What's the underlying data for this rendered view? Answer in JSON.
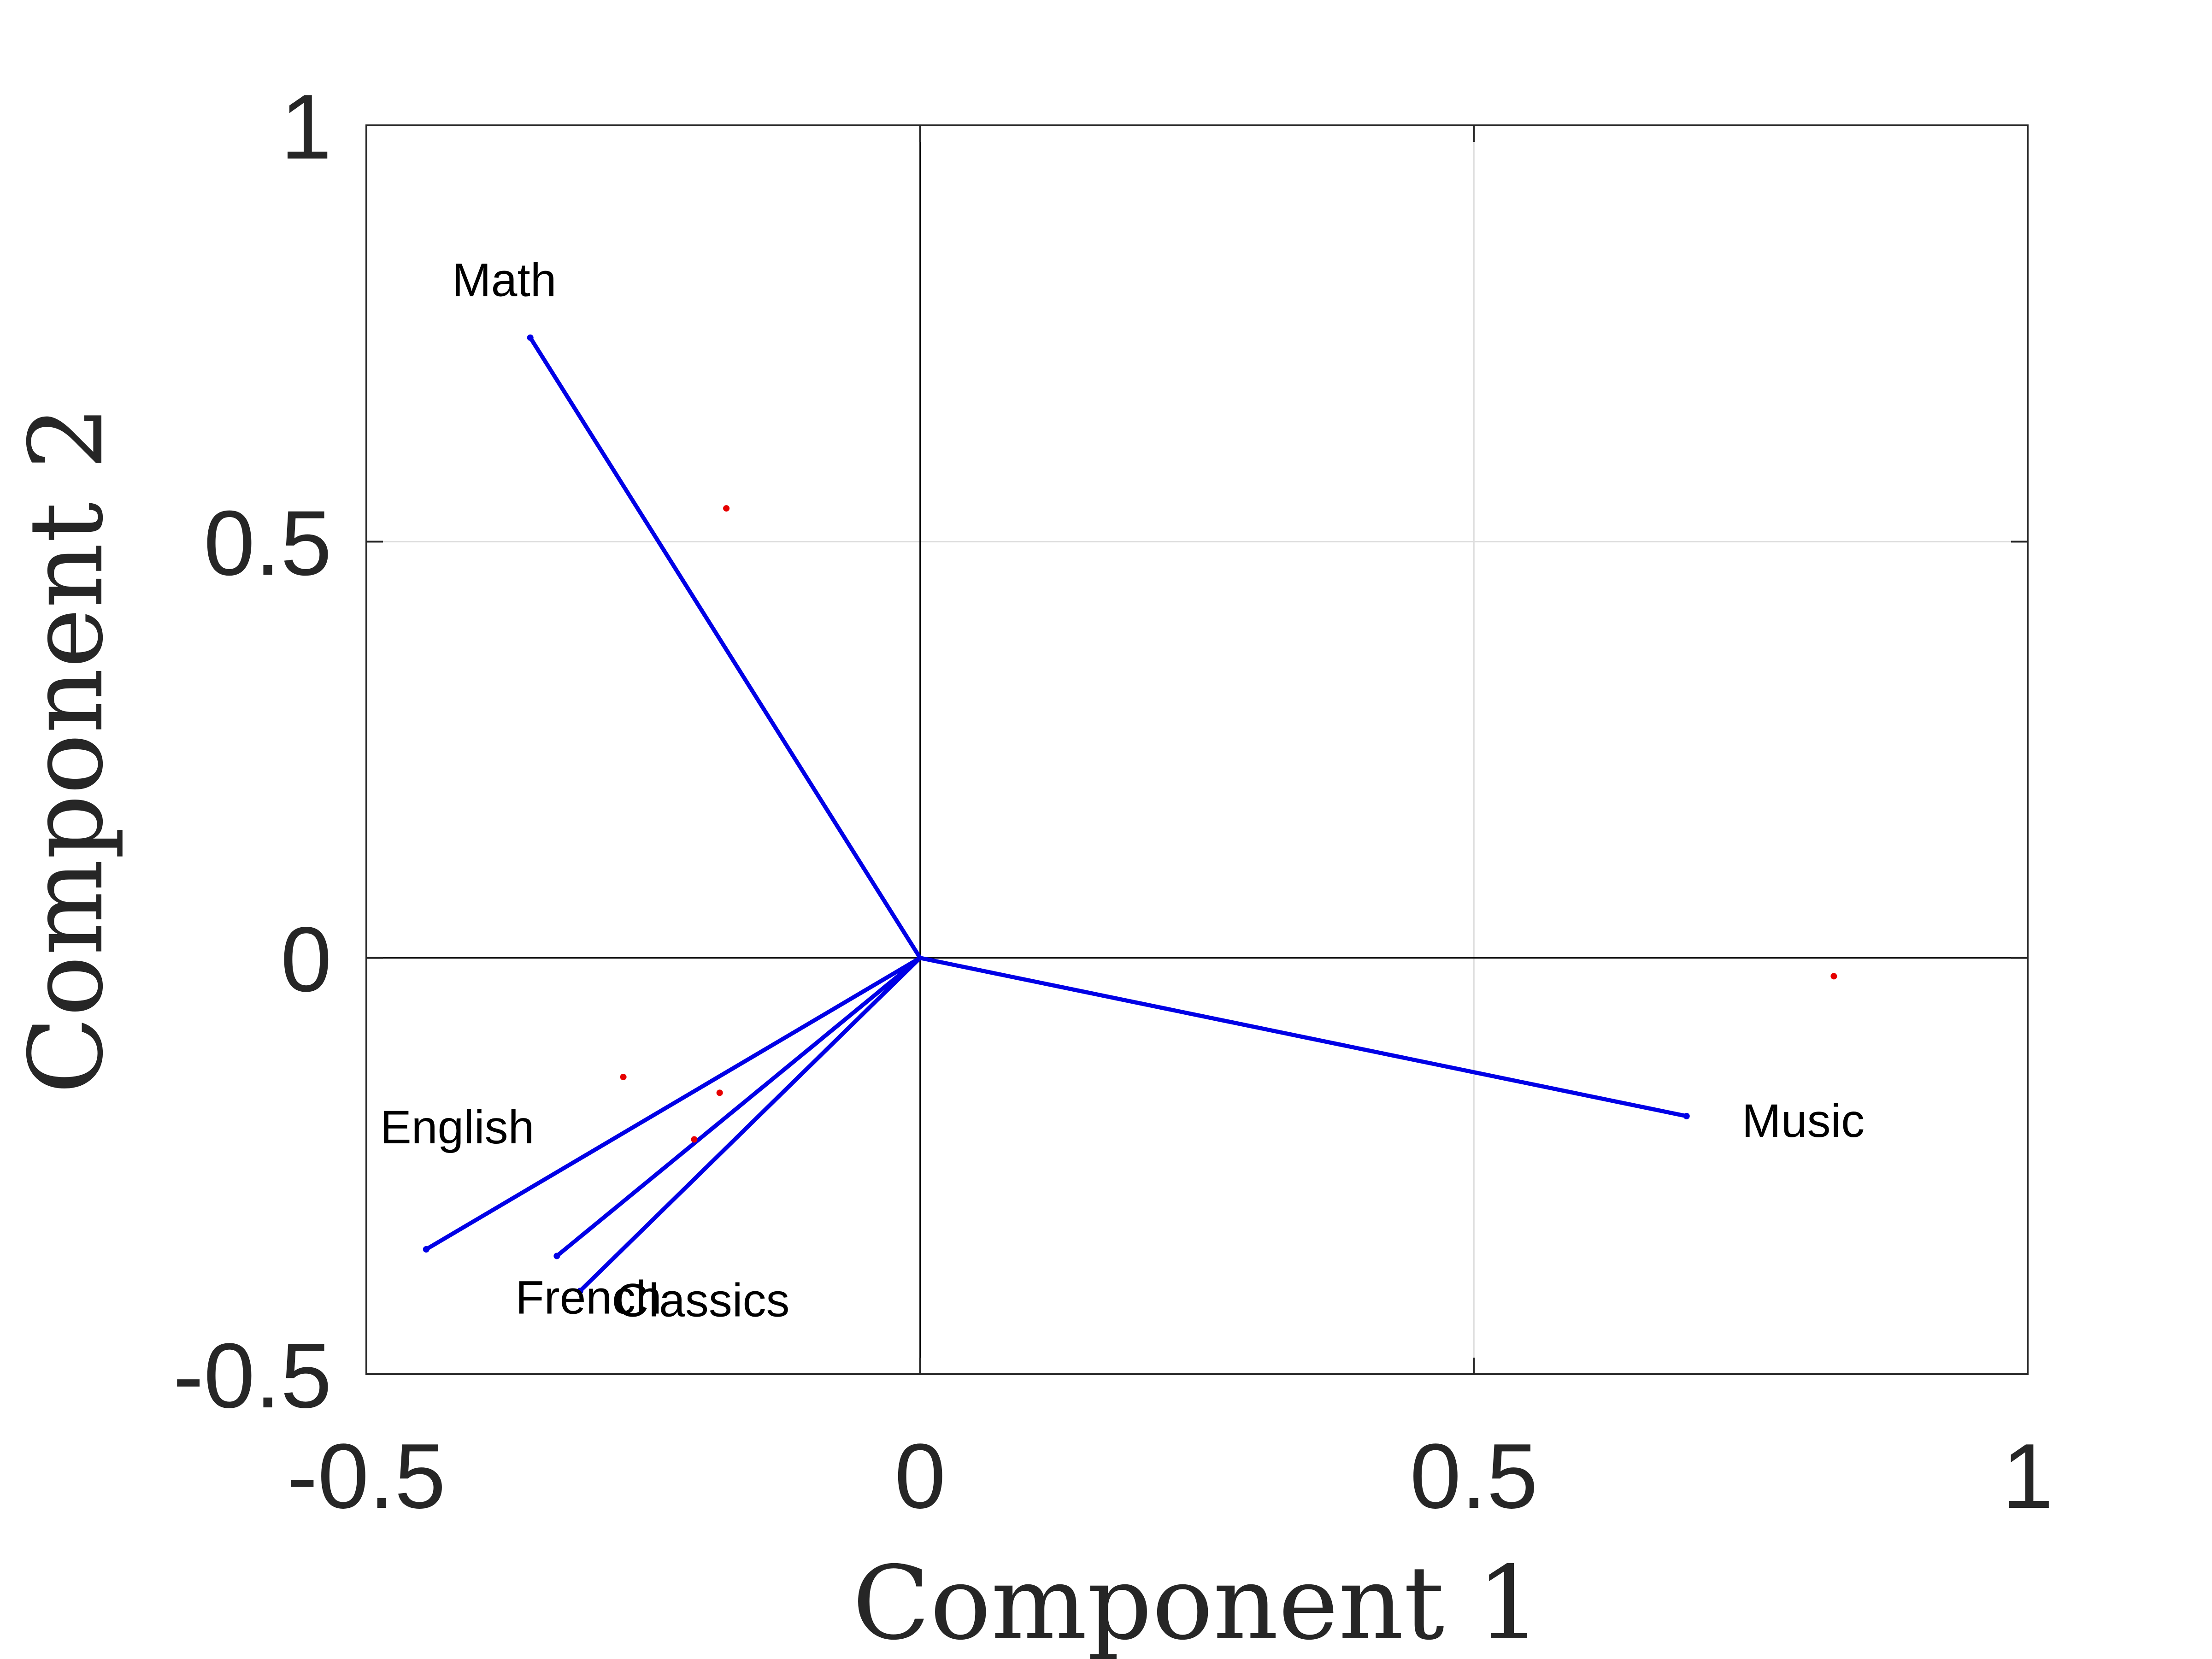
{
  "chart_data": {
    "type": "biplot",
    "title": "",
    "xlabel": "Component 1",
    "ylabel": "Component 2",
    "xlim": [
      -0.5,
      1
    ],
    "ylim": [
      -0.5,
      1
    ],
    "xticks": [
      -0.5,
      0,
      0.5,
      1
    ],
    "yticks": [
      -0.5,
      0,
      0.5,
      1
    ],
    "xtick_labels": [
      "-0.5",
      "0",
      "0.5",
      "1"
    ],
    "ytick_labels": [
      "-0.5",
      "0",
      "0.5",
      "1"
    ],
    "grid": true,
    "vector_color": "#0000e6",
    "point_color": "#e60000",
    "vectors": [
      {
        "label": "Math",
        "x": -0.352,
        "y": 0.745
      },
      {
        "label": "English",
        "x": -0.446,
        "y": -0.35
      },
      {
        "label": "French",
        "x": -0.328,
        "y": -0.358
      },
      {
        "label": "Classics",
        "x": -0.307,
        "y": -0.4
      },
      {
        "label": "Music",
        "x": 0.692,
        "y": -0.19
      }
    ],
    "points": [
      {
        "x": -0.175,
        "y": 0.54
      },
      {
        "x": -0.268,
        "y": -0.143
      },
      {
        "x": -0.181,
        "y": -0.162
      },
      {
        "x": -0.204,
        "y": -0.218
      },
      {
        "x": 0.825,
        "y": -0.022
      }
    ]
  }
}
